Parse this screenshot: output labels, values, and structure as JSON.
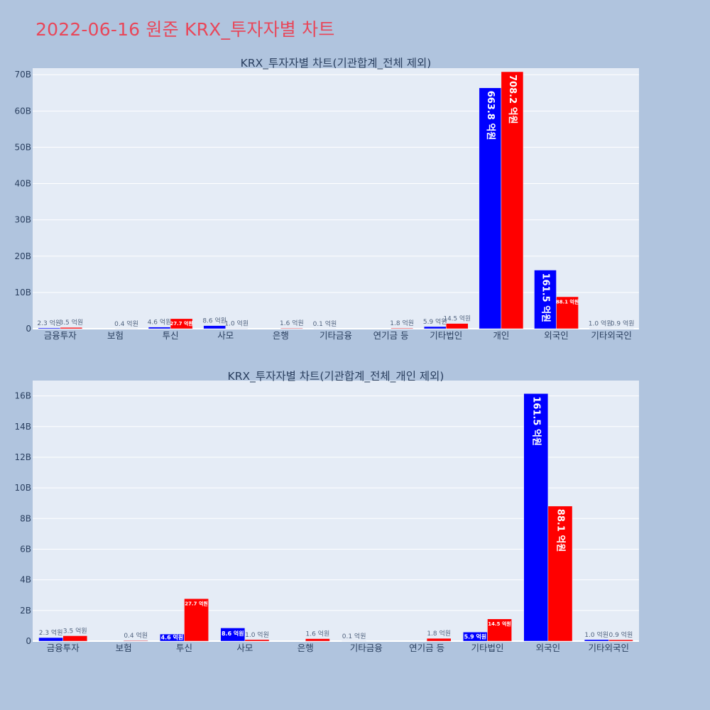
{
  "page": {
    "title": "2022-06-16 원준 KRX_투자자별 차트"
  },
  "colors": {
    "background": "#b0c4de",
    "plot_bg": "#e5ecf6",
    "grid": "#ffffff",
    "title": "#e8475a",
    "text": "#2a3f5f",
    "series_blue": "#0000ff",
    "series_red": "#ff0000"
  },
  "chart_data": [
    {
      "type": "bar",
      "title": "KRX_투자자별 차트(기관합계_전체 제외)",
      "categories": [
        "금융투자",
        "보험",
        "투신",
        "사모",
        "은행",
        "기타금융",
        "연기금 등",
        "기타법인",
        "개인",
        "외국인",
        "기타외국인"
      ],
      "series": [
        {
          "color": "#0000ff",
          "values": [
            0.23,
            0,
            0.46,
            0.86,
            0,
            0.01,
            0,
            0.59,
            66.38,
            16.15,
            0.1
          ],
          "labels": [
            "2.3 억원",
            "",
            "4.6 억원",
            "8.6 억원",
            "",
            "0.1 억원",
            "",
            "5.9 억원",
            "663.8 억원",
            "161.5 억원",
            "1.0 억원"
          ]
        },
        {
          "color": "#ff0000",
          "values": [
            0.35,
            0.04,
            2.77,
            0.1,
            0.16,
            0,
            0.18,
            1.45,
            70.82,
            8.81,
            0.09
          ],
          "labels": [
            "3.5 억원",
            "0.4 억원",
            "27.7 억원",
            "1.0 억원",
            "1.6 억원",
            "",
            "1.8 억원",
            "14.5 억원",
            "708.2 억원",
            "88.1 억원",
            "0.9 억원"
          ]
        }
      ],
      "y_unit": "B",
      "yticks": [
        0,
        10,
        20,
        30,
        40,
        50,
        60,
        70
      ],
      "ylim": [
        0,
        71.8
      ],
      "grid": true,
      "legend": "none"
    },
    {
      "type": "bar",
      "title": "KRX_투자자별 차트(기관합계_전체_개인 제외)",
      "categories": [
        "금융투자",
        "보험",
        "투신",
        "사모",
        "은행",
        "기타금융",
        "연기금 등",
        "기타법인",
        "외국인",
        "기타외국인"
      ],
      "series": [
        {
          "color": "#0000ff",
          "values": [
            0.23,
            0,
            0.46,
            0.86,
            0,
            0.01,
            0,
            0.59,
            16.15,
            0.1
          ],
          "labels": [
            "2.3 억원",
            "",
            "4.6 억원",
            "8.6 억원",
            "",
            "0.1 억원",
            "",
            "5.9 억원",
            "161.5 억원",
            "1.0 억원"
          ]
        },
        {
          "color": "#ff0000",
          "values": [
            0.35,
            0.04,
            2.77,
            0.1,
            0.16,
            0,
            0.18,
            1.45,
            8.81,
            0.09
          ],
          "labels": [
            "3.5 억원",
            "0.4 억원",
            "27.7 억원",
            "1.0 억원",
            "1.6 억원",
            "",
            "1.8 억원",
            "14.5 억원",
            "88.1 억원",
            "0.9 억원"
          ]
        }
      ],
      "y_unit": "B",
      "yticks": [
        0,
        2,
        4,
        6,
        8,
        10,
        12,
        14,
        16
      ],
      "ylim": [
        0,
        17.0
      ],
      "grid": true,
      "legend": "none"
    }
  ]
}
